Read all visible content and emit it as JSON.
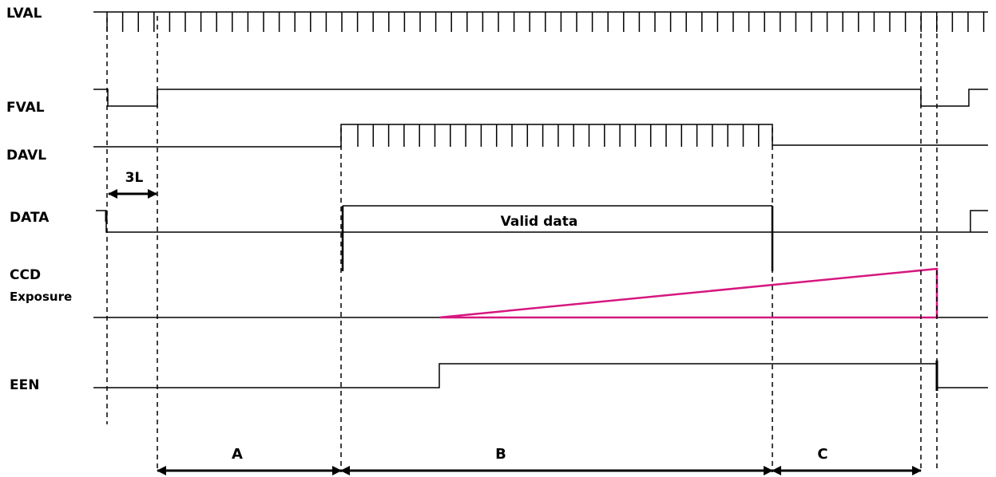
{
  "signals": {
    "lval": "LVAL",
    "fval": "FVAL",
    "davl": "DAVL",
    "data": "DATA",
    "ccd_line1": "CCD",
    "ccd_line2": "Exposure",
    "een": "EEN"
  },
  "annotations": {
    "three_l": "3L",
    "valid_data": "Valid data"
  },
  "periods": [
    "A",
    "B",
    "C"
  ],
  "colors": {
    "line": "#000000",
    "exposure": "#d6177f"
  }
}
